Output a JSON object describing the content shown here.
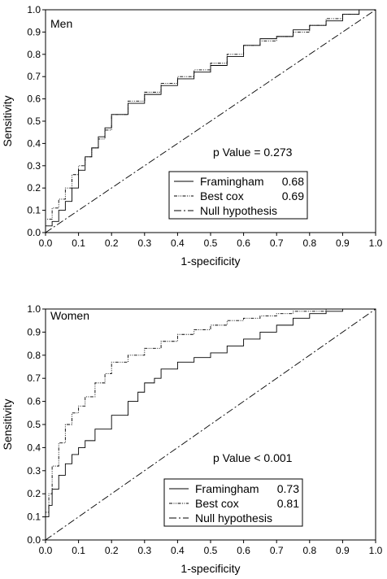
{
  "chart_data": [
    {
      "type": "line",
      "panel_label": "Men",
      "xlabel": "1-specificity",
      "ylabel": "Sensitivity",
      "xlim": [
        0,
        1
      ],
      "ylim": [
        0,
        1
      ],
      "xticks": [
        "0.0",
        "0.1",
        "0.2",
        "0.3",
        "0.4",
        "0.5",
        "0.6",
        "0.7",
        "0.8",
        "0.9",
        "1.0"
      ],
      "yticks": [
        "0.0",
        "0.1",
        "0.2",
        "0.3",
        "0.4",
        "0.5",
        "0.6",
        "0.7",
        "0.8",
        "0.9",
        "1.0"
      ],
      "annotation": "p Value = 0.273",
      "legend_position": "lower-right",
      "grid": false,
      "series": [
        {
          "name": "Framingham",
          "auc": "0.68",
          "style": "solid",
          "x": [
            0,
            0.02,
            0.04,
            0.06,
            0.08,
            0.1,
            0.12,
            0.14,
            0.16,
            0.18,
            0.2,
            0.25,
            0.3,
            0.35,
            0.4,
            0.45,
            0.5,
            0.55,
            0.6,
            0.65,
            0.7,
            0.75,
            0.8,
            0.85,
            0.9,
            0.95,
            1
          ],
          "y": [
            0,
            0.03,
            0.05,
            0.1,
            0.14,
            0.2,
            0.28,
            0.34,
            0.38,
            0.43,
            0.47,
            0.53,
            0.58,
            0.62,
            0.66,
            0.69,
            0.72,
            0.75,
            0.79,
            0.84,
            0.87,
            0.88,
            0.91,
            0.93,
            0.95,
            0.98,
            1
          ]
        },
        {
          "name": "Best cox",
          "auc": "0.69",
          "style": "dash-dot",
          "x": [
            0,
            0.02,
            0.04,
            0.06,
            0.08,
            0.1,
            0.12,
            0.14,
            0.16,
            0.18,
            0.2,
            0.25,
            0.3,
            0.35,
            0.4,
            0.45,
            0.5,
            0.55,
            0.6,
            0.65,
            0.7,
            0.75,
            0.8,
            0.85,
            0.9,
            0.95,
            1
          ],
          "y": [
            0,
            0.06,
            0.11,
            0.15,
            0.2,
            0.26,
            0.3,
            0.34,
            0.38,
            0.42,
            0.46,
            0.53,
            0.59,
            0.63,
            0.67,
            0.7,
            0.73,
            0.76,
            0.8,
            0.84,
            0.86,
            0.88,
            0.9,
            0.93,
            0.96,
            0.98,
            1
          ]
        },
        {
          "name": "Null hypothesis",
          "style": "dashed",
          "x": [
            0,
            1
          ],
          "y": [
            0,
            1
          ]
        }
      ]
    },
    {
      "type": "line",
      "panel_label": "Women",
      "xlabel": "1-specificity",
      "ylabel": "Sensitivity",
      "xlim": [
        0,
        1
      ],
      "ylim": [
        0,
        1
      ],
      "xticks": [
        "0.0",
        "0.1",
        "0.2",
        "0.3",
        "0.4",
        "0.5",
        "0.6",
        "0.7",
        "0.8",
        "0.9",
        "1.0"
      ],
      "yticks": [
        "0.0",
        "0.1",
        "0.2",
        "0.3",
        "0.4",
        "0.5",
        "0.6",
        "0.7",
        "0.8",
        "0.9",
        "1.0"
      ],
      "annotation": "p Value < 0.001",
      "legend_position": "lower-right",
      "grid": false,
      "series": [
        {
          "name": "Framingham",
          "auc": "0.73",
          "style": "solid",
          "x": [
            0,
            0.01,
            0.02,
            0.04,
            0.06,
            0.08,
            0.1,
            0.12,
            0.15,
            0.2,
            0.25,
            0.28,
            0.3,
            0.33,
            0.35,
            0.4,
            0.45,
            0.5,
            0.55,
            0.6,
            0.65,
            0.7,
            0.75,
            0.8,
            0.85,
            0.9,
            0.95,
            1
          ],
          "y": [
            0,
            0.1,
            0.15,
            0.22,
            0.28,
            0.33,
            0.37,
            0.4,
            0.43,
            0.48,
            0.54,
            0.6,
            0.64,
            0.68,
            0.7,
            0.74,
            0.77,
            0.79,
            0.81,
            0.84,
            0.87,
            0.9,
            0.93,
            0.96,
            0.98,
            0.99,
            1,
            1
          ]
        },
        {
          "name": "Best cox",
          "auc": "0.81",
          "style": "dash-dot",
          "x": [
            0,
            0.01,
            0.02,
            0.04,
            0.06,
            0.08,
            0.1,
            0.12,
            0.15,
            0.18,
            0.2,
            0.25,
            0.3,
            0.35,
            0.4,
            0.45,
            0.5,
            0.55,
            0.6,
            0.65,
            0.7,
            0.75,
            0.8,
            0.85,
            0.9,
            0.95,
            1
          ],
          "y": [
            0,
            0.12,
            0.2,
            0.32,
            0.42,
            0.5,
            0.55,
            0.58,
            0.62,
            0.68,
            0.72,
            0.77,
            0.8,
            0.83,
            0.86,
            0.89,
            0.91,
            0.93,
            0.95,
            0.96,
            0.97,
            0.98,
            0.99,
            0.99,
            1,
            1,
            1
          ]
        },
        {
          "name": "Null hypothesis",
          "style": "dashed",
          "x": [
            0,
            1
          ],
          "y": [
            0,
            1
          ]
        }
      ]
    }
  ]
}
